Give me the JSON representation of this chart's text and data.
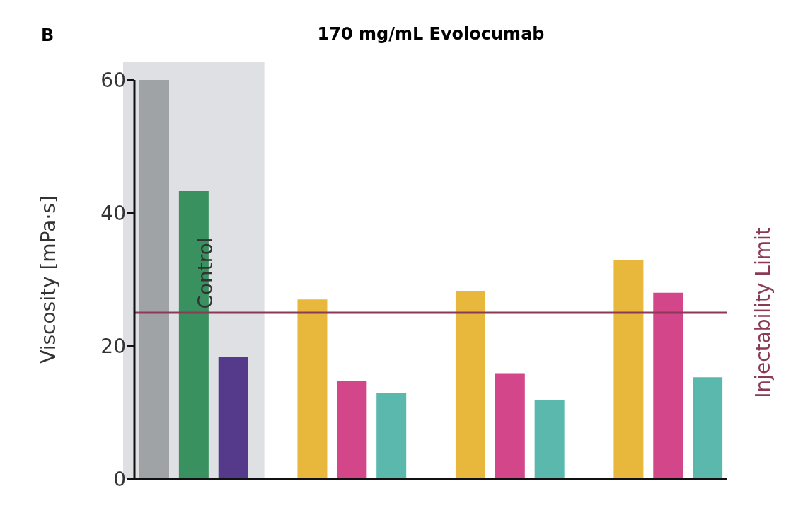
{
  "chart_data": {
    "type": "bar",
    "title": "170 mg/mL Evolocumab",
    "ylabel": "Viscosity [mPa·s]",
    "annotations": [
      "B",
      "Control"
    ],
    "categories": [
      null,
      null,
      null,
      null,
      null,
      null,
      null,
      null,
      null,
      null,
      null,
      null,
      null,
      null,
      null
    ],
    "values": [
      60,
      43.3,
      18.4,
      null,
      27,
      14.7,
      12.9,
      null,
      28.2,
      15.9,
      11.8,
      null,
      32.9,
      28,
      15.3
    ],
    "colors": [
      "#a0a3a6",
      "#3a9160",
      "#55398a",
      "#ffffff",
      "#e8b83d",
      "#d4468a",
      "#5ab8ac",
      "#ffffff",
      "#e8b83d",
      "#d4468a",
      "#5ab8ac",
      "#ffffff",
      "#e8b83d",
      "#d4468a",
      "#5ab8ac"
    ],
    "ylim": [
      0,
      60
    ],
    "yticks": [
      0,
      20,
      40,
      60
    ],
    "ref_lines": [
      {
        "axis": "y",
        "value": 25,
        "label": "Injectability Limit",
        "color": "#8b3a55"
      }
    ]
  }
}
